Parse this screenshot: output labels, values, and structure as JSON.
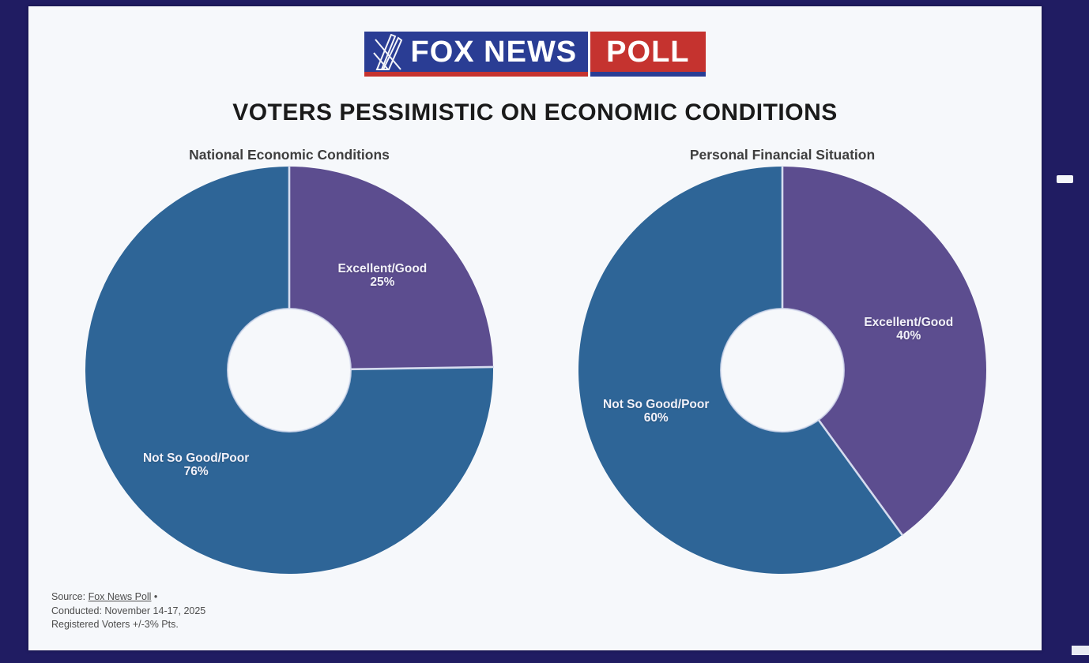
{
  "page": {
    "background_color": "#201c62",
    "card_color": "#f6f8fb"
  },
  "logo": {
    "brand": "FOX NEWS",
    "product": "POLL",
    "blue": "#2a3d94",
    "red": "#c5332f"
  },
  "title": "VOTERS PESSIMISTIC ON ECONOMIC CONDITIONS",
  "chart_data": [
    {
      "type": "pie",
      "subtype": "donut",
      "title": "National Economic Conditions",
      "start_angle": "top",
      "clockwise": true,
      "hole_ratio": 0.3,
      "label_position": "inside",
      "slices": [
        {
          "label": "Excellent/Good",
          "value": 25,
          "pct": "25%",
          "color": "#5c4d8f"
        },
        {
          "label": "Not So Good/Poor",
          "value": 76,
          "pct": "76%",
          "color": "#2e6597"
        }
      ]
    },
    {
      "type": "pie",
      "subtype": "donut",
      "title": "Personal Financial Situation",
      "start_angle": "top",
      "clockwise": true,
      "hole_ratio": 0.3,
      "label_position": "inside",
      "slices": [
        {
          "label": "Excellent/Good",
          "value": 40,
          "pct": "40%",
          "color": "#5c4d8f"
        },
        {
          "label": "Not So Good/Poor",
          "value": 60,
          "pct": "60%",
          "color": "#2e6597"
        }
      ]
    }
  ],
  "source": {
    "prefix": "Source: ",
    "link_text": "Fox News Poll",
    "bullet": " •",
    "line2": "Conducted: November 14-17, 2025",
    "line3": "Registered Voters +/-3% Pts."
  },
  "icons": {
    "searchlights": "fox-searchlights-icon",
    "dash": "dash-marker"
  },
  "divider_color": "#d6dcef"
}
